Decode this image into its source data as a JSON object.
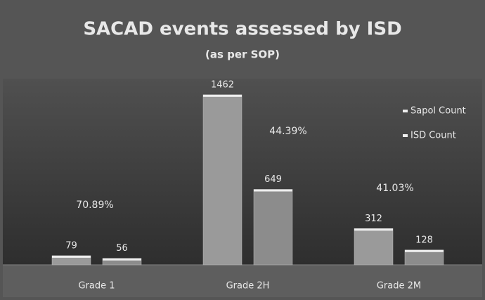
{
  "chart_data": {
    "type": "bar",
    "title": "SACAD events assessed by ISD",
    "subtitle": "(as per SOP)",
    "categories": [
      "Grade 1",
      "Grade 2H",
      "Grade 2M"
    ],
    "series": [
      {
        "name": "Sapol Count",
        "color": "#9a9a9a",
        "values": [
          79,
          1462,
          312
        ]
      },
      {
        "name": "ISD Count",
        "color": "#8c8c8c",
        "values": [
          56,
          649,
          128
        ]
      }
    ],
    "annotations": [
      "70.89%",
      "44.39%",
      "41.03%"
    ],
    "ylim": [
      0,
      1600
    ],
    "legend": "upper right"
  }
}
